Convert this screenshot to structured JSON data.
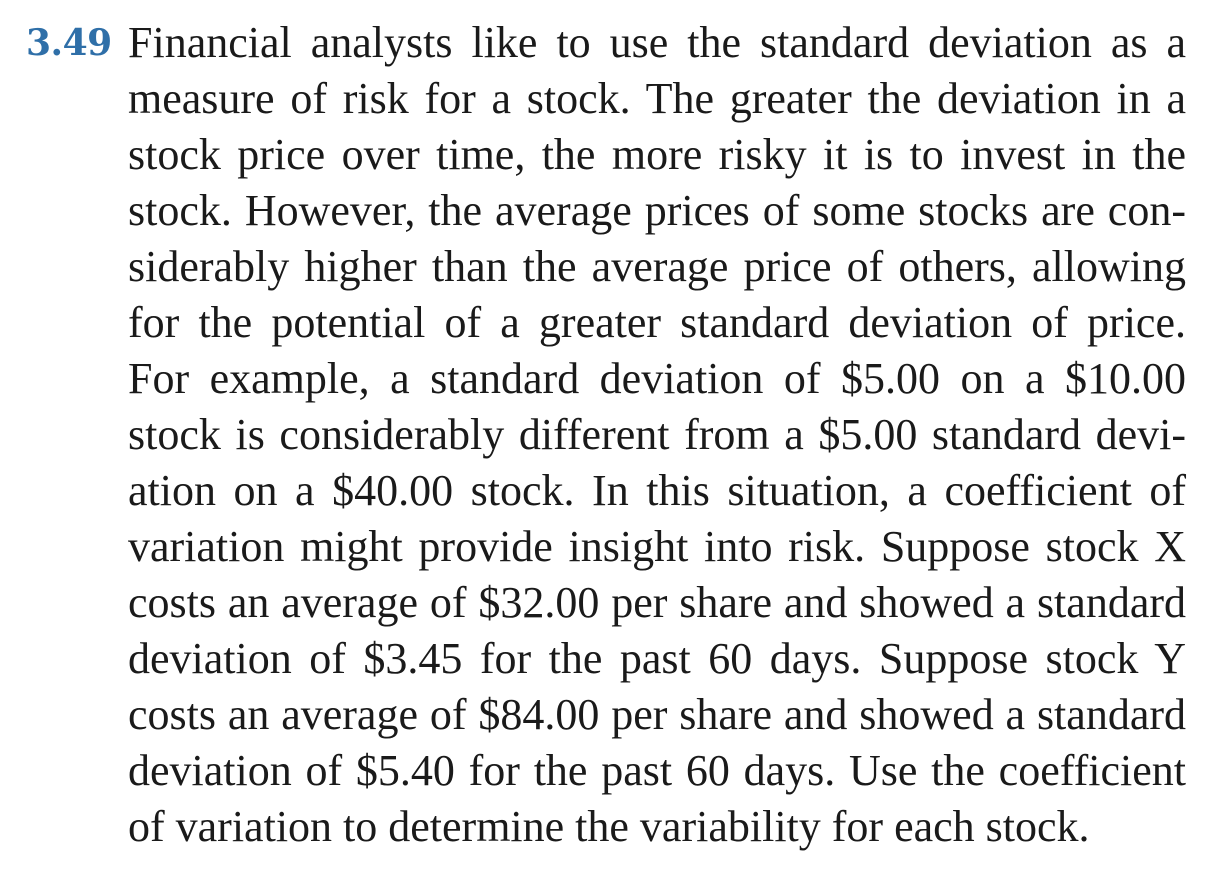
{
  "problem": {
    "number": "3.49",
    "lines": [
      "Financial analysts like to use the standard deviation as a",
      "measure of risk for a stock. The greater the deviation in a",
      "stock price over time, the more risky it is to invest in the",
      "stock. However, the average prices of some stocks are con-",
      "siderably higher than the average price of others, allowing",
      "for the potential of a greater standard deviation of price.",
      "For example, a standard deviation of $5.00 on a $10.00",
      "stock is considerably different from a $5.00 standard devi-",
      "ation on a $40.00 stock. In this situation, a coefficient of",
      "variation might provide insight into risk. Suppose stock X",
      "costs an average of $32.00 per share and showed a standard",
      "deviation of $3.45 for the past 60 days. Suppose stock Y",
      "costs an average of $84.00 per share and showed a standard",
      "deviation of $5.40 for the past 60 days. Use the coefficient",
      "of variation to determine the variability for each stock."
    ],
    "number_color": "#2f6fa8",
    "text_color": "#1a1a1a"
  }
}
